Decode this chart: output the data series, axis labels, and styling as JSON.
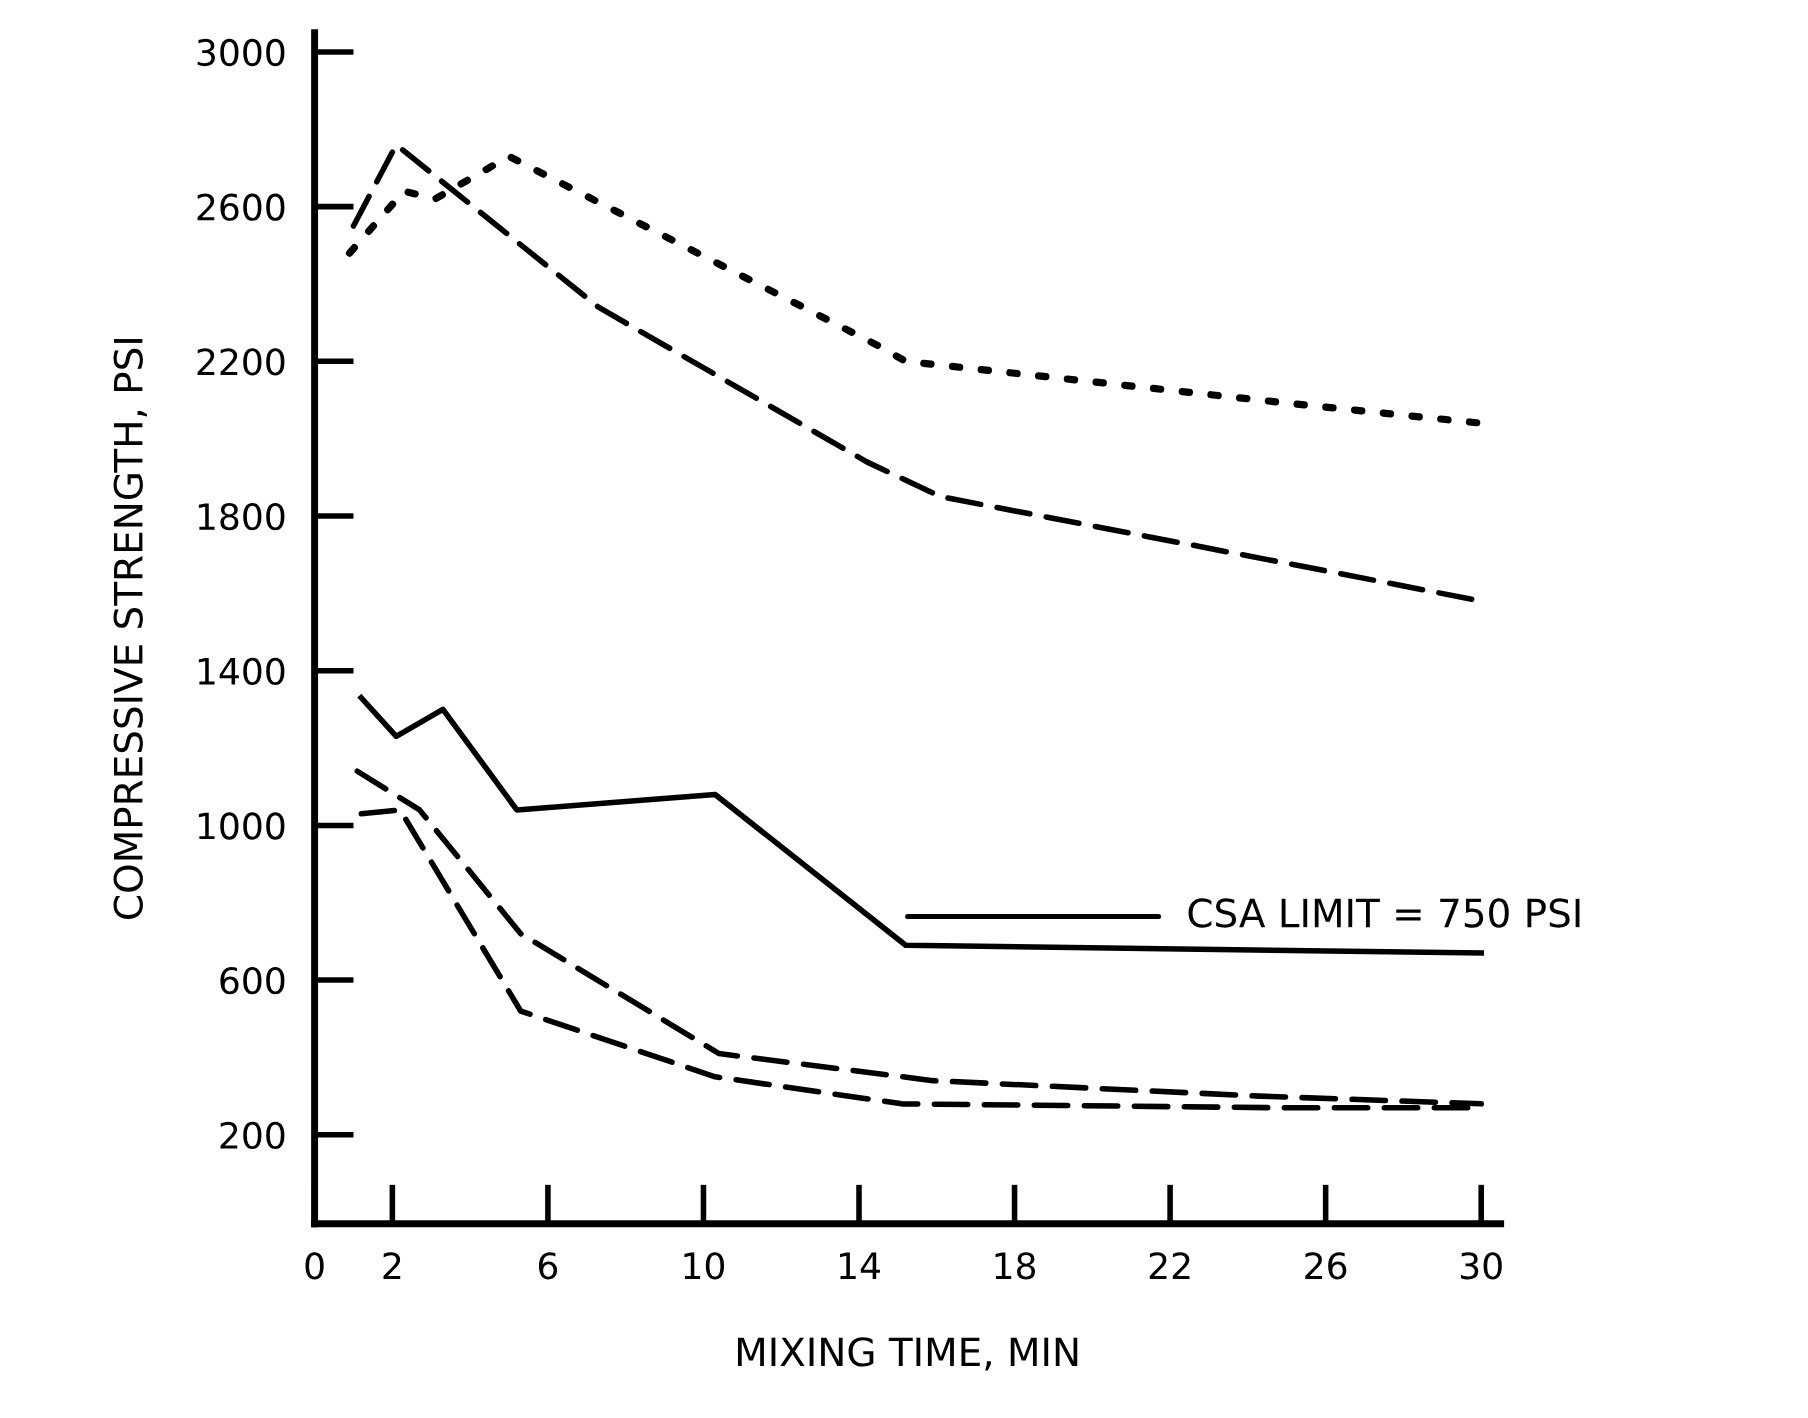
{
  "chart_data": {
    "type": "line",
    "xlabel": "MIXING TIME, MIN",
    "ylabel": "COMPRESSIVE STRENGTH, PSI",
    "xlim": [
      0,
      30.5
    ],
    "ylim": [
      -30,
      3050
    ],
    "xticks": [
      0,
      2,
      6,
      10,
      14,
      18,
      22,
      26,
      30
    ],
    "yticks": [
      200,
      600,
      1000,
      1400,
      1800,
      2200,
      2600,
      3000
    ],
    "grid": false,
    "legend": false,
    "marker": "none",
    "series": [
      {
        "color": "#000000",
        "line_style": "dotted",
        "x": [
          0.9,
          2.3,
          3.1,
          5.0,
          14.5,
          15.2,
          25.2,
          30
        ],
        "values": [
          2480,
          2640,
          2620,
          2730,
          2240,
          2200,
          2090,
          2040
        ]
      },
      {
        "color": "#000000",
        "line_style": "dashed",
        "x": [
          1.0,
          2.1,
          7.3,
          14.2,
          16.1,
          25.4,
          30
        ],
        "values": [
          2550,
          2760,
          2340,
          1940,
          1850,
          1670,
          1580
        ]
      },
      {
        "color": "#000000",
        "line_style": "solid",
        "x": [
          1.2,
          2.1,
          3.3,
          5.2,
          10.3,
          15.2,
          30
        ],
        "values": [
          1330,
          1230,
          1300,
          1040,
          1080,
          690,
          670
        ]
      },
      {
        "color": "#000000",
        "line_style": "dashed",
        "x": [
          1.1,
          2.7,
          5.3,
          10.4,
          15.9,
          24.3,
          30
        ],
        "values": [
          1140,
          1040,
          720,
          410,
          340,
          300,
          280
        ]
      },
      {
        "color": "#000000",
        "line_style": "dashed",
        "x": [
          1.2,
          2.2,
          5.3,
          10.3,
          15.1,
          24.7,
          30
        ],
        "values": [
          1030,
          1040,
          520,
          350,
          280,
          270,
          270
        ]
      }
    ],
    "annotations": [
      "CSA LIMIT = 750 PSI"
    ]
  }
}
